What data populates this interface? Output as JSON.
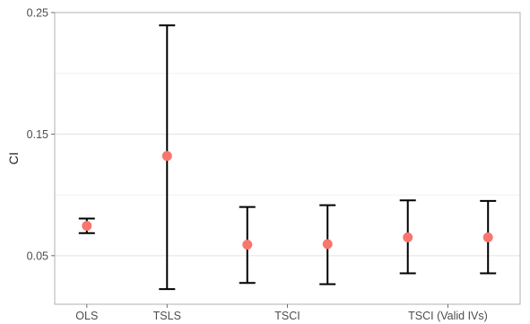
{
  "chart_data": {
    "type": "errorbar",
    "title": "",
    "xlabel": "",
    "ylabel": "CI",
    "ylim": [
      0.01,
      0.25
    ],
    "y_ticks": [
      0.05,
      0.15,
      0.25
    ],
    "y_tick_labels": [
      "0.05",
      "0.15",
      "0.25"
    ],
    "y_minor_grid": [
      0.1,
      0.2
    ],
    "grid": true,
    "legend": "none",
    "x_tick_labels": [
      "OLS",
      "TSLS",
      "TSCI",
      "TSCI (Valid IVs)"
    ],
    "x_tick_positions": [
      1,
      2,
      3.5,
      5.5
    ],
    "xlim": [
      0.6,
      6.4
    ],
    "series": [
      {
        "color": "#f8766d",
        "points": [
          {
            "x": 1,
            "estimate": 0.0745,
            "lower": 0.0685,
            "upper": 0.0805
          },
          {
            "x": 2,
            "estimate": 0.132,
            "lower": 0.0225,
            "upper": 0.2395
          },
          {
            "x": 3,
            "estimate": 0.059,
            "lower": 0.0275,
            "upper": 0.09
          },
          {
            "x": 4,
            "estimate": 0.0595,
            "lower": 0.0265,
            "upper": 0.0915
          },
          {
            "x": 5,
            "estimate": 0.065,
            "lower": 0.0355,
            "upper": 0.0955
          },
          {
            "x": 6,
            "estimate": 0.065,
            "lower": 0.0355,
            "upper": 0.095
          }
        ]
      }
    ]
  }
}
